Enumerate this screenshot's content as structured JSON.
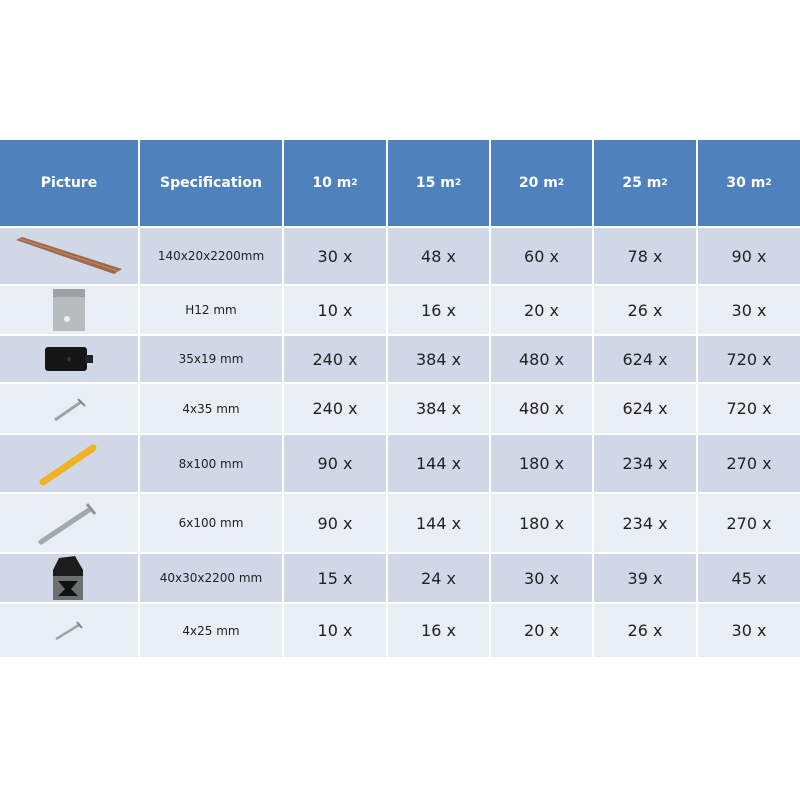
{
  "header": {
    "picture": "Picture",
    "specification": "Specification",
    "areas": [
      "10 m",
      "15 m",
      "20 m",
      "25 m",
      "30 m"
    ],
    "area_superscript": "2"
  },
  "colors": {
    "header": "#4f81bd",
    "row_dark": "#d0d8e8",
    "row_light": "#e9edf4"
  },
  "rows": [
    {
      "icon": "deck-board",
      "spec": "140x20x2200mm",
      "values": [
        "30 x",
        "48 x",
        "60 x",
        "78 x",
        "90 x"
      ]
    },
    {
      "icon": "metal-clip",
      "spec": "H12 mm",
      "values": [
        "10 x",
        "16 x",
        "20 x",
        "26 x",
        "30 x"
      ]
    },
    {
      "icon": "black-clip",
      "spec": "35x19 mm",
      "values": [
        "240 x",
        "384 x",
        "480 x",
        "624 x",
        "720 x"
      ]
    },
    {
      "icon": "screw",
      "spec": "4x35 mm",
      "values": [
        "240 x",
        "384 x",
        "480 x",
        "624 x",
        "720 x"
      ]
    },
    {
      "icon": "yellow-wall-plug",
      "spec": "8x100 mm",
      "values": [
        "90 x",
        "144 x",
        "180 x",
        "234 x",
        "270 x"
      ]
    },
    {
      "icon": "long-screw",
      "spec": "6x100 mm",
      "values": [
        "90 x",
        "144 x",
        "180 x",
        "234 x",
        "270 x"
      ]
    },
    {
      "icon": "joist",
      "spec": "40x30x2200 mm",
      "values": [
        "15 x",
        "24 x",
        "30 x",
        "39 x",
        "45 x"
      ]
    },
    {
      "icon": "small-screw",
      "spec": "4x25 mm",
      "values": [
        "10 x",
        "16 x",
        "20 x",
        "26 x",
        "30 x"
      ]
    }
  ]
}
